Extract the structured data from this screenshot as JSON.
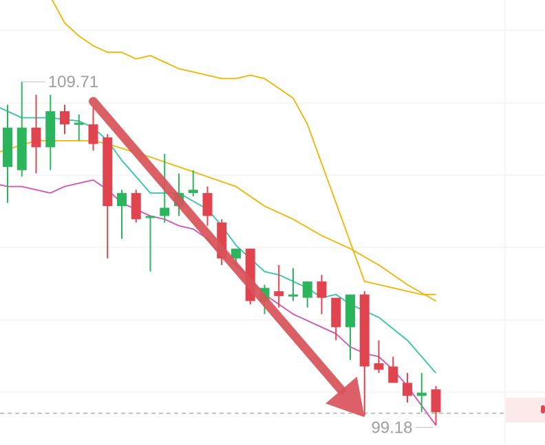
{
  "colors": {
    "up": "#2db55d",
    "down": "#e0454f",
    "ma_slow": "#f0b400",
    "ma_fast": "#2ec4a8",
    "lower_band": "#d24fb8",
    "trend_arrow": "#d9535a",
    "grid": "#eeeeee",
    "price_line": "#aaaaaa",
    "annotation_text": "#9e9e9e"
  },
  "chart_data": {
    "type": "candlestick",
    "title": "",
    "xlabel": "",
    "ylabel": "",
    "ylim": [
      98.6,
      112.2
    ],
    "annotations": {
      "high_label": "109.71",
      "low_label": "99.18"
    },
    "current_price_line": 99.57,
    "trend_arrow": {
      "from": {
        "x": 6,
        "y": 109.1
      },
      "to": {
        "x": 25,
        "y": 99.45
      }
    },
    "candles": [
      {
        "x": 0,
        "open": 107.1,
        "high": 109.0,
        "low": 106.0,
        "close": 108.3
      },
      {
        "x": 1,
        "open": 107.0,
        "high": 109.7,
        "low": 106.8,
        "close": 108.3
      },
      {
        "x": 2,
        "open": 108.3,
        "high": 109.3,
        "low": 106.9,
        "close": 107.7
      },
      {
        "x": 3,
        "open": 107.7,
        "high": 109.3,
        "low": 107.0,
        "close": 108.8
      },
      {
        "x": 4,
        "open": 108.8,
        "high": 109.0,
        "low": 108.1,
        "close": 108.4
      },
      {
        "x": 5,
        "open": 108.4,
        "high": 108.7,
        "low": 107.9,
        "close": 108.45
      },
      {
        "x": 6,
        "open": 108.4,
        "high": 108.9,
        "low": 107.6,
        "close": 107.8
      },
      {
        "x": 7,
        "open": 108.0,
        "high": 108.1,
        "low": 104.3,
        "close": 105.9
      },
      {
        "x": 8,
        "open": 105.9,
        "high": 106.4,
        "low": 104.9,
        "close": 106.3
      },
      {
        "x": 9,
        "open": 106.3,
        "high": 106.4,
        "low": 105.4,
        "close": 105.5
      },
      {
        "x": 10,
        "open": 105.6,
        "high": 105.6,
        "low": 103.9,
        "close": 105.6
      },
      {
        "x": 11,
        "open": 105.6,
        "high": 107.5,
        "low": 105.4,
        "close": 105.85
      },
      {
        "x": 12,
        "open": 105.9,
        "high": 106.9,
        "low": 105.6,
        "close": 106.3
      },
      {
        "x": 13,
        "open": 106.3,
        "high": 107.0,
        "low": 106.2,
        "close": 106.4
      },
      {
        "x": 14,
        "open": 106.3,
        "high": 106.5,
        "low": 105.3,
        "close": 105.6
      },
      {
        "x": 15,
        "open": 105.4,
        "high": 105.5,
        "low": 104.1,
        "close": 104.3
      },
      {
        "x": 16,
        "open": 104.3,
        "high": 104.6,
        "low": 104.0,
        "close": 104.6
      },
      {
        "x": 17,
        "open": 104.6,
        "high": 104.6,
        "low": 102.9,
        "close": 103.0
      },
      {
        "x": 18,
        "open": 103.0,
        "high": 103.5,
        "low": 102.6,
        "close": 103.4
      },
      {
        "x": 19,
        "open": 103.3,
        "high": 104.1,
        "low": 102.8,
        "close": 103.15
      },
      {
        "x": 20,
        "open": 103.2,
        "high": 104.0,
        "low": 103.0,
        "close": 103.2
      },
      {
        "x": 21,
        "open": 103.1,
        "high": 103.6,
        "low": 102.8,
        "close": 103.6
      },
      {
        "x": 22,
        "open": 103.6,
        "high": 103.8,
        "low": 102.6,
        "close": 103.1
      },
      {
        "x": 23,
        "open": 103.1,
        "high": 103.1,
        "low": 101.8,
        "close": 102.2
      },
      {
        "x": 24,
        "open": 102.2,
        "high": 103.2,
        "low": 101.2,
        "close": 103.2
      },
      {
        "x": 25,
        "open": 103.2,
        "high": 103.3,
        "low": 99.5,
        "close": 101.0
      },
      {
        "x": 26,
        "open": 101.1,
        "high": 101.8,
        "low": 100.8,
        "close": 100.9
      },
      {
        "x": 27,
        "open": 101.0,
        "high": 101.3,
        "low": 100.6,
        "close": 100.5
      },
      {
        "x": 28,
        "open": 100.5,
        "high": 100.8,
        "low": 99.9,
        "close": 100.1
      },
      {
        "x": 29,
        "open": 100.1,
        "high": 100.8,
        "low": 99.6,
        "close": 100.2
      },
      {
        "x": 30,
        "open": 100.3,
        "high": 100.4,
        "low": 99.2,
        "close": 99.6
      }
    ],
    "series": [
      {
        "color_key": "ma_slow",
        "x": [
          -1,
          2,
          3,
          6,
          7,
          10,
          12,
          14,
          16,
          18,
          20,
          22,
          24,
          26,
          28,
          30
        ],
        "values": [
          107.5,
          107.9,
          107.9,
          107.9,
          107.8,
          107.4,
          107.1,
          106.8,
          106.5,
          105.9,
          105.5,
          105.0,
          104.6,
          104.1,
          103.5,
          103.0
        ]
      },
      {
        "color_key": "ma_fast",
        "x": [
          -1,
          1,
          3,
          5,
          6,
          7,
          8,
          10,
          12,
          14,
          15,
          16,
          17,
          18,
          19,
          20,
          21,
          22,
          23,
          24,
          26,
          28,
          30
        ],
        "values": [
          109.0,
          108.6,
          108.6,
          108.5,
          108.3,
          107.9,
          107.3,
          106.3,
          106.3,
          105.8,
          105.3,
          104.7,
          104.3,
          103.9,
          103.8,
          103.6,
          103.4,
          103.1,
          103.2,
          102.9,
          102.5,
          101.8,
          100.8
        ]
      },
      {
        "color_key": "lower_band",
        "x": [
          -1,
          0,
          1,
          2,
          3,
          4,
          5,
          6,
          7,
          8,
          9,
          10,
          11,
          12,
          13,
          14,
          15,
          16,
          17,
          18,
          19,
          20,
          21,
          22,
          23,
          24,
          25,
          26,
          27,
          28,
          29,
          30
        ],
        "values": [
          106.6,
          106.5,
          106.5,
          106.4,
          106.3,
          106.5,
          106.6,
          106.7,
          106.4,
          106.0,
          105.8,
          105.6,
          105.5,
          105.3,
          105.2,
          104.9,
          104.4,
          104.1,
          103.7,
          103.2,
          102.9,
          102.6,
          102.4,
          102.2,
          102.0,
          101.6,
          101.4,
          101.3,
          100.9,
          100.4,
          99.8,
          99.2
        ]
      },
      {
        "color_key": "ma_slow",
        "x": [
          3,
          4,
          5,
          6,
          7,
          8,
          9,
          10,
          11,
          12,
          13,
          14,
          15,
          16,
          17,
          18,
          19,
          20,
          21,
          22,
          23,
          24,
          25,
          26,
          27,
          28,
          29,
          30
        ],
        "values": [
          112.3,
          111.5,
          111.1,
          110.8,
          110.6,
          110.6,
          110.4,
          110.5,
          110.3,
          110.1,
          110.0,
          109.9,
          109.8,
          109.8,
          109.9,
          109.8,
          109.5,
          109.2,
          108.4,
          107.2,
          106.0,
          104.8,
          103.6,
          103.5,
          103.4,
          103.3,
          103.2,
          103.2
        ]
      }
    ]
  }
}
